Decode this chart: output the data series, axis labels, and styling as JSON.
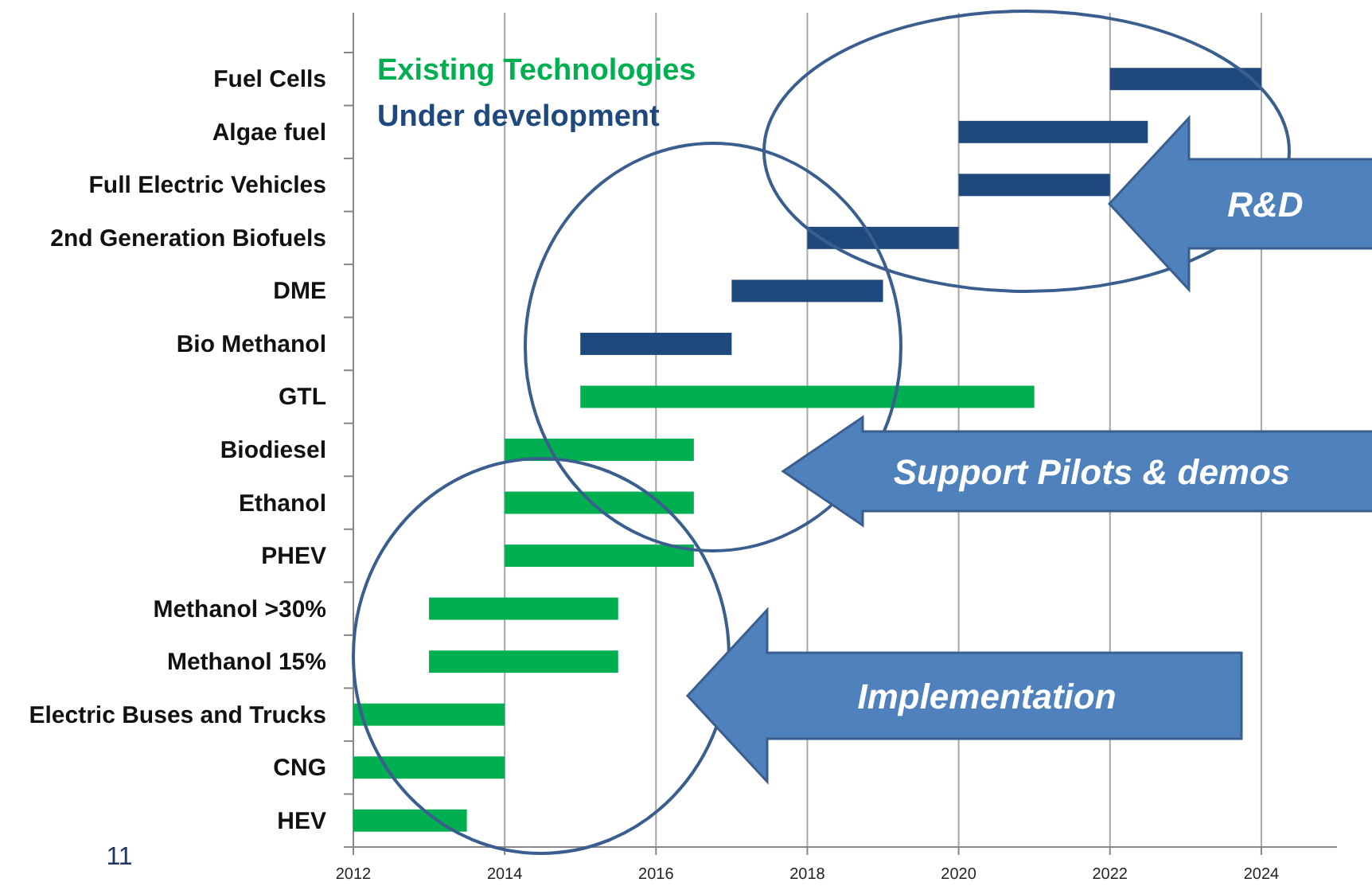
{
  "chart_data": {
    "type": "bar",
    "orientation": "horizontal",
    "categories": [
      "Fuel Cells",
      "Algae fuel",
      "Full Electric Vehicles",
      "2nd Generation Biofuels",
      "DME",
      "Bio Methanol",
      "GTL",
      "Biodiesel",
      "Ethanol",
      "PHEV",
      "Methanol >30%",
      "Methanol 15%",
      "Electric Buses and Trucks",
      "CNG",
      "HEV"
    ],
    "series": [
      {
        "name": "Existing Technologies",
        "color": "#00b050",
        "base": [
          null,
          null,
          null,
          null,
          null,
          null,
          2015,
          2014,
          2014,
          2014,
          2013,
          2013,
          2012,
          2012,
          2012
        ],
        "values": [
          null,
          null,
          null,
          null,
          null,
          null,
          6,
          2.5,
          2.5,
          2.5,
          2.5,
          2.5,
          2,
          2,
          1.5
        ]
      },
      {
        "name": "Under development",
        "color": "#1f497d",
        "base": [
          2022,
          2020,
          2020,
          2018,
          2017,
          2015,
          null,
          null,
          null,
          null,
          null,
          null,
          null,
          null,
          null
        ],
        "values": [
          2,
          2.5,
          2,
          2,
          2,
          2,
          null,
          null,
          null,
          null,
          null,
          null,
          null,
          null,
          null
        ]
      }
    ],
    "xlim": [
      2012,
      2025
    ],
    "xticks": [
      2012,
      2014,
      2016,
      2018,
      2020,
      2022,
      2024
    ],
    "grid": "x",
    "legend": "top left",
    "annotations": [
      "R&D",
      "Support Pilots & demos",
      "Implementation",
      "11"
    ]
  }
}
